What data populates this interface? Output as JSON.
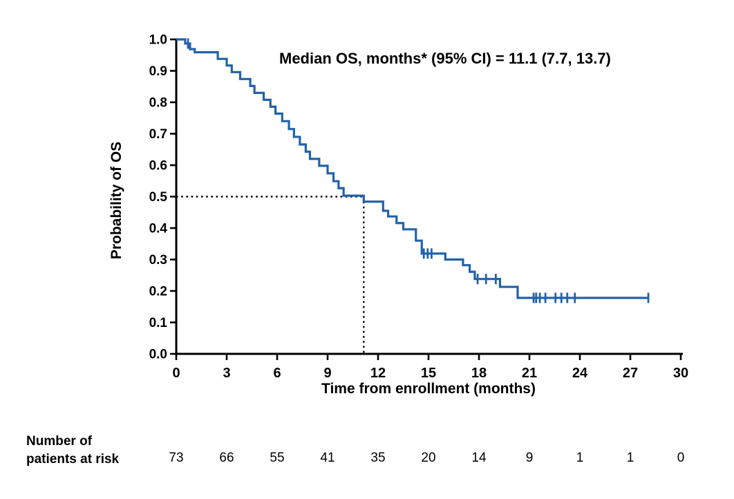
{
  "chart_data": {
    "type": "line",
    "subtype": "kaplan_meier_step_curve",
    "series_name": "Overall survival",
    "title": "Median OS, months* (95% CI) = 11.1 (7.7, 13.7)",
    "xlabel": "Time from enrollment (months)",
    "ylabel": "Probability of OS",
    "xlim": [
      0,
      30
    ],
    "ylim": [
      0.0,
      1.0
    ],
    "xticks": [
      0,
      3,
      6,
      9,
      12,
      15,
      18,
      21,
      24,
      27,
      30
    ],
    "yticks": [
      0.0,
      0.1,
      0.2,
      0.3,
      0.4,
      0.5,
      0.6,
      0.7,
      0.8,
      0.9,
      1.0
    ],
    "grid": false,
    "legend": "none",
    "line_color": "#2262AA",
    "axis_color": "#000000",
    "median_reference": {
      "time": 11.15,
      "probability": 0.5,
      "line_style": "dotted"
    },
    "curve_end_time": 28.07,
    "steps": [
      [
        0.0,
        1.0
      ],
      [
        0.53,
        0.987
      ],
      [
        0.82,
        0.969
      ],
      [
        1.1,
        0.959
      ],
      [
        2.47,
        0.938
      ],
      [
        3.0,
        0.917
      ],
      [
        3.3,
        0.896
      ],
      [
        3.8,
        0.874
      ],
      [
        4.4,
        0.852
      ],
      [
        4.65,
        0.83
      ],
      [
        5.2,
        0.808
      ],
      [
        5.6,
        0.786
      ],
      [
        5.9,
        0.764
      ],
      [
        6.3,
        0.74
      ],
      [
        6.7,
        0.715
      ],
      [
        7.0,
        0.69
      ],
      [
        7.35,
        0.666
      ],
      [
        7.7,
        0.643
      ],
      [
        7.95,
        0.62
      ],
      [
        8.5,
        0.598
      ],
      [
        9.0,
        0.574
      ],
      [
        9.35,
        0.549
      ],
      [
        9.65,
        0.527
      ],
      [
        9.95,
        0.503
      ],
      [
        11.15,
        0.484
      ],
      [
        12.3,
        0.455
      ],
      [
        12.6,
        0.437
      ],
      [
        13.1,
        0.416
      ],
      [
        13.5,
        0.396
      ],
      [
        14.25,
        0.36
      ],
      [
        14.6,
        0.319
      ],
      [
        16.0,
        0.3
      ],
      [
        17.05,
        0.282
      ],
      [
        17.45,
        0.261
      ],
      [
        17.75,
        0.238
      ],
      [
        19.25,
        0.213
      ],
      [
        20.3,
        0.178
      ]
    ],
    "censor_marks": [
      [
        0.7,
        0.987
      ],
      [
        14.72,
        0.319
      ],
      [
        14.95,
        0.319
      ],
      [
        15.18,
        0.319
      ],
      [
        17.92,
        0.238
      ],
      [
        18.42,
        0.238
      ],
      [
        19.0,
        0.238
      ],
      [
        21.25,
        0.178
      ],
      [
        21.4,
        0.178
      ],
      [
        21.62,
        0.178
      ],
      [
        21.95,
        0.178
      ],
      [
        22.55,
        0.178
      ],
      [
        22.9,
        0.178
      ],
      [
        23.25,
        0.178
      ],
      [
        23.7,
        0.178
      ],
      [
        28.07,
        0.178
      ]
    ],
    "risk_table": {
      "label_line1": "Number of",
      "label_line2": "patients at risk",
      "times": [
        0,
        3,
        6,
        9,
        12,
        15,
        18,
        21,
        24,
        27,
        30
      ],
      "values": [
        73,
        66,
        55,
        41,
        35,
        20,
        14,
        9,
        1,
        1,
        0
      ]
    }
  }
}
